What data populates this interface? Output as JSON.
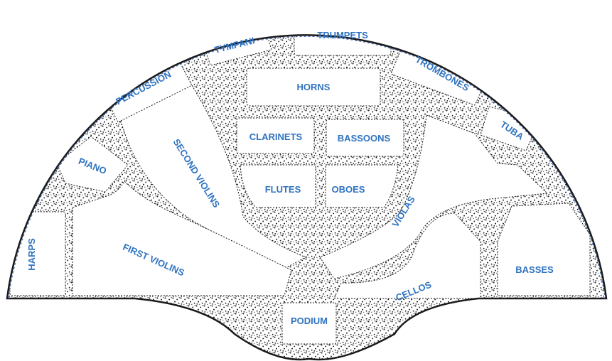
{
  "colors": {
    "label": "#2f73c0",
    "outline": "#1a1a1a",
    "stipple": "#1e1e1e",
    "section_fill": "#ffffff",
    "rim": "#4a6fb5"
  },
  "sections": {
    "tympani": "TYMPANI",
    "trumpets": "TRUMPETS",
    "trombones": "TROMBONES",
    "percussion": "PERCUSSION",
    "horns": "HORNS",
    "tuba": "TUBA",
    "clarinets": "CLARINETS",
    "bassoons": "BASSOONS",
    "second_violins": "SECOND VIOLINS",
    "piano": "PIANO",
    "flutes": "FLUTES",
    "oboes": "OBOES",
    "violas": "VIOLAS",
    "harps": "HARPS",
    "first_violins": "FIRST VIOLINS",
    "basses": "BASSES",
    "cellos": "CELLOS",
    "podium": "PODIUM"
  }
}
